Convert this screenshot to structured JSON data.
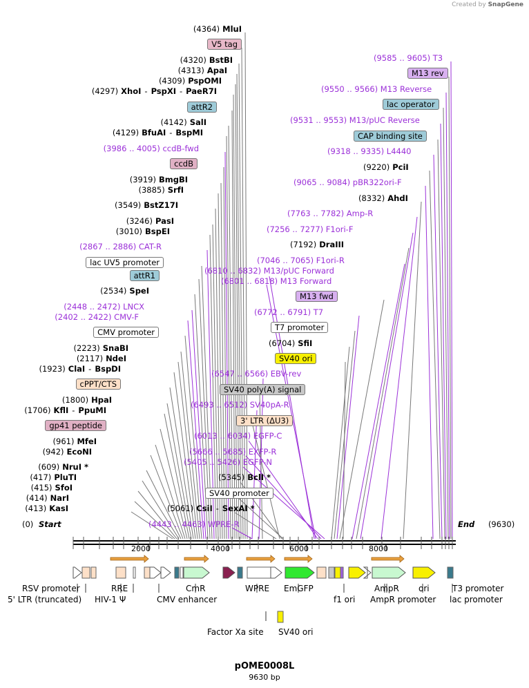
{
  "credit": {
    "prefix": "Created by",
    "brand": "SnapGene"
  },
  "plasmid": {
    "name": "pOME0008L",
    "length": "9630 bp"
  },
  "ruler": {
    "start_pos": "(0)",
    "start": "Start",
    "end": "End",
    "end_pos": "(9630)",
    "ticks": [
      "2000",
      "4000",
      "6000",
      "8000"
    ]
  },
  "sites_left": [
    {
      "pos": "(4364)",
      "name": "MluI"
    },
    {
      "feature": "V5 tag",
      "color": "#e8b8c8"
    },
    {
      "pos": "(4320)",
      "name": "BstBI"
    },
    {
      "pos": "(4313)",
      "name": "ApaI"
    },
    {
      "pos": "(4309)",
      "name": "PspOMI"
    },
    {
      "pos": "(4297)",
      "name": "XhoI",
      "name2": "PspXI",
      "name3": "PaeR7I"
    },
    {
      "feature": "attR2",
      "color": "#9ecbd8"
    },
    {
      "pos": "(4142)",
      "name": "SalI"
    },
    {
      "pos": "(4129)",
      "name": "BfuAI",
      "name2": "BspMI"
    },
    {
      "primer": "(3986 .. 4005)  ccdB-fwd"
    },
    {
      "feature": "ccdB",
      "color": "#e0b0c4"
    },
    {
      "pos": "(3919)",
      "name": "BmgBI"
    },
    {
      "pos": "(3885)",
      "name": "SrfI"
    },
    {
      "pos": "(3549)",
      "name": "BstZ17I"
    },
    {
      "pos": "(3246)",
      "name": "PasI"
    },
    {
      "pos": "(3010)",
      "name": "BspEI"
    },
    {
      "primer": "(2867 .. 2886)  CAT-R"
    },
    {
      "feature": "lac UV5 promoter",
      "color": "#ffffff"
    },
    {
      "feature": "attR1",
      "color": "#9ecbd8"
    },
    {
      "pos": "(2534)",
      "name": "SpeI"
    },
    {
      "primer": "(2448 .. 2472)  LNCX"
    },
    {
      "primer": "(2402 .. 2422)  CMV-F"
    },
    {
      "feature": "CMV promoter",
      "color": "#ffffff"
    },
    {
      "pos": "(2223)",
      "name": "SnaBI"
    },
    {
      "pos": "(2117)",
      "name": "NdeI"
    },
    {
      "pos": "(1923)",
      "name": "ClaI",
      "name2": "BspDI"
    },
    {
      "feature": "cPPT/CTS",
      "color": "#fde0c8"
    },
    {
      "pos": "(1800)",
      "name": "HpaI"
    },
    {
      "pos": "(1706)",
      "name": "KflI",
      "name2": "PpuMI"
    },
    {
      "feature": "gp41 peptide",
      "color": "#e0b0c4"
    },
    {
      "pos": "(961)",
      "name": "MfeI"
    },
    {
      "pos": "(942)",
      "name": "EcoNI"
    },
    {
      "pos": "(609)",
      "name": "NruI *"
    },
    {
      "pos": "(417)",
      "name": "PluTI"
    },
    {
      "pos": "(415)",
      "name": "SfoI"
    },
    {
      "pos": "(414)",
      "name": "NarI"
    },
    {
      "pos": "(413)",
      "name": "KasI"
    }
  ],
  "sites_mid": [
    {
      "primer": "(6810 .. 6832)  M13/pUC Forward"
    },
    {
      "primer": "(6801 .. 6818)  M13 Forward"
    },
    {
      "primer": "(6547 .. 6566)  EBV-rev"
    },
    {
      "feature": "SV40 poly(A) signal",
      "color": "#c8c8c8"
    },
    {
      "primer": "(6493 .. 6512)  SV40pA-R"
    },
    {
      "feature": "3' LTR (ΔU3)",
      "color": "#fde0c8"
    },
    {
      "primer": "(6013 .. 6034)  EGFP-C"
    },
    {
      "primer": "(5666 .. 5685)  EXFP-R"
    },
    {
      "primer": "(5405 .. 5426)  EGFP-N"
    },
    {
      "pos": "(5345)",
      "name": "BclI *"
    },
    {
      "feature": "SV40 promoter",
      "color": "#ffffff"
    },
    {
      "pos": "(5061)",
      "name": "CsiI",
      "name2": "SexAI *"
    },
    {
      "primer": "(4443 .. 4463)  WPRE-R"
    }
  ],
  "sites_right": [
    {
      "primer": "(9585 .. 9605)  T3"
    },
    {
      "feature": "M13 rev",
      "color": "#d8b0f0"
    },
    {
      "primer": "(9550 .. 9566)  M13 Reverse"
    },
    {
      "feature": "lac operator",
      "color": "#9ecbd8"
    },
    {
      "primer": "(9531 .. 9553)  M13/pUC Reverse"
    },
    {
      "feature": "CAP binding site",
      "color": "#9ecbd8"
    },
    {
      "primer": "(9318 .. 9335)  L4440"
    },
    {
      "pos": "(9220)",
      "name": "PciI"
    },
    {
      "primer": "(9065 .. 9084)  pBR322ori-F"
    },
    {
      "pos": "(8332)",
      "name": "AhdI"
    },
    {
      "primer": "(7763 .. 7782)  Amp-R"
    },
    {
      "primer": "(7256 .. 7277)  F1ori-F"
    },
    {
      "pos": "(7192)",
      "name": "DraIII"
    },
    {
      "primer": "(7046 .. 7065)  F1ori-R"
    },
    {
      "feature": "M13 fwd",
      "color": "#d8b0f0"
    },
    {
      "primer": "(6772 .. 6791)  T7"
    },
    {
      "feature": "T7 promoter",
      "color": "#ffffff"
    },
    {
      "pos": "(6704)",
      "name": "SfiI"
    },
    {
      "feature": "SV40 ori",
      "color": "#f8f000"
    }
  ],
  "features_bottom": [
    {
      "label": "RSV promoter"
    },
    {
      "label": "5' LTR (truncated)"
    },
    {
      "label": "RRE"
    },
    {
      "label": "HIV-1 Ψ"
    },
    {
      "label": "CmR"
    },
    {
      "label": "CMV enhancer"
    },
    {
      "label": "WPRE"
    },
    {
      "label": "EmGFP"
    },
    {
      "label": "f1 ori"
    },
    {
      "label": "AmpR"
    },
    {
      "label": "AmpR promoter"
    },
    {
      "label": "ori"
    },
    {
      "label": "T3 promoter"
    },
    {
      "label": "lac promoter"
    },
    {
      "label": "Factor Xa site"
    },
    {
      "label": "SV40 ori"
    }
  ]
}
